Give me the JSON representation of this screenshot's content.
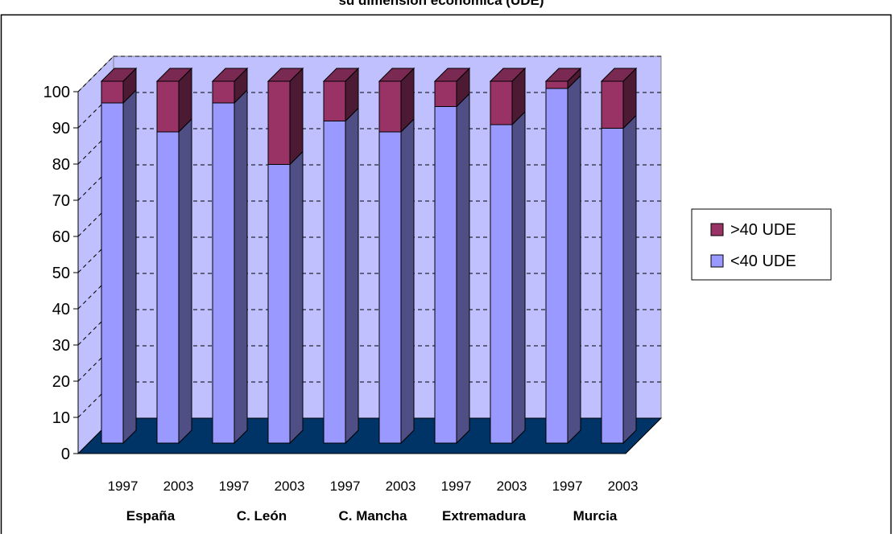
{
  "chart_data": {
    "type": "bar",
    "stacked": true,
    "three_d": true,
    "title": "su dimensión económica (UDE)",
    "categories": [
      "1997",
      "2003",
      "1997",
      "2003",
      "1997",
      "2003",
      "1997",
      "2003",
      "1997",
      "2003"
    ],
    "groups": [
      "España",
      "C. León",
      "C. Mancha",
      "Extremadura",
      "Murcia"
    ],
    "group_size": 2,
    "series": [
      {
        "name": "<40 UDE",
        "values": [
          94,
          86,
          94,
          77,
          89,
          86,
          93,
          88,
          98,
          87
        ]
      },
      {
        "name": ">40 UDE",
        "values": [
          6,
          14,
          6,
          23,
          11,
          14,
          7,
          12,
          2,
          13
        ]
      }
    ],
    "ylim": [
      0,
      100
    ],
    "yticks": [
      0,
      10,
      20,
      30,
      40,
      50,
      60,
      70,
      80,
      90,
      100
    ],
    "xlabel": "",
    "ylabel": "",
    "grid": true,
    "legend_position": "right",
    "colors": {
      "under_40": "#9999ff",
      "under_40_side": "#4f4f85",
      "under_40_top": "#7a7ae0",
      "over_40": "#993366",
      "over_40_side": "#4c1a33",
      "over_40_top": "#7a2952",
      "wall": "#c0c0ff",
      "floor": "#003366",
      "grid": "#000000"
    }
  }
}
